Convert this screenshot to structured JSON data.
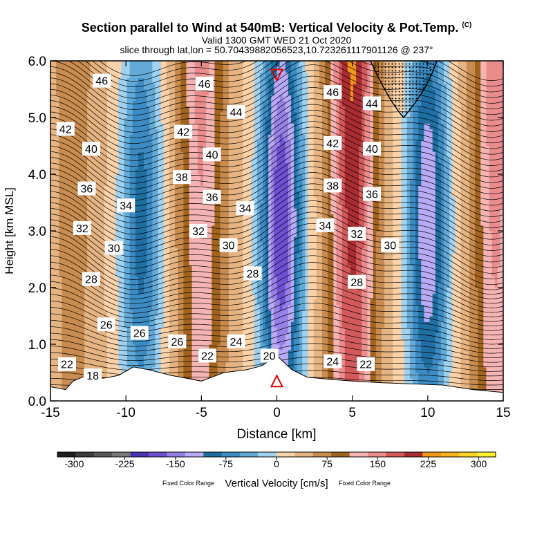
{
  "title": {
    "main": "Section parallel to Wind at 540mB: Vertical Velocity & Pot.Temp.",
    "copyright": "(C)",
    "valid": "Valid 1300 GMT WED 21 Oct 2020",
    "slice": "slice through lat,lon = 50.70439882056523,10.723261117901126 @ 237°"
  },
  "colorbar": {
    "title": "Vertical Velocity [cm/s]",
    "note_left": "Fixed Color Range",
    "note_right": "Fixed Color Range",
    "ticks": [
      "-300",
      "-225",
      "-150",
      "-75",
      "0",
      "75",
      "150",
      "225",
      "300"
    ],
    "tick_values": [
      -300,
      -225,
      -150,
      -75,
      0,
      75,
      150,
      225,
      300
    ],
    "range": [
      -325,
      325
    ],
    "step": 25,
    "colors": [
      "#1e1e1e",
      "#3c3c3c",
      "#5a5a5a",
      "#7a7a7a",
      "#4b32b4",
      "#6e50d2",
      "#9682e6",
      "#b9aaf5",
      "#1e6ea0",
      "#3c8cc3",
      "#64aad7",
      "#a0d2f0",
      "#fad2aa",
      "#e6b482",
      "#c88c50",
      "#a0641e",
      "#f5b4b4",
      "#eb8c8c",
      "#d25a5a",
      "#aa2d32",
      "#f09614",
      "#f5b41e",
      "#fad228",
      "#fff032"
    ]
  },
  "chart_data": {
    "type": "contour",
    "xlabel": "Distance [km]",
    "ylabel": "Height [km MSL]",
    "xlim": [
      -15,
      15
    ],
    "ylim": [
      0,
      6
    ],
    "xticks": [
      -15,
      -10,
      -5,
      0,
      5,
      10,
      15
    ],
    "xtick_labels": [
      "-15",
      "-10",
      "-5",
      "0",
      "5",
      "10",
      "15"
    ],
    "yticks": [
      0,
      1,
      2,
      3,
      4,
      5,
      6
    ],
    "ytick_labels": [
      "0.0",
      "1.0",
      "2.0",
      "3.0",
      "4.0",
      "5.0",
      "6.0"
    ],
    "shaded_field": "Vertical Velocity [cm/s]",
    "contour_field": "Pot.Temp.",
    "velocity_columns": [
      {
        "x_center": -13.5,
        "sign": "up",
        "peak": 40
      },
      {
        "x_center": -9.0,
        "sign": "down",
        "peak": -110
      },
      {
        "x_center": -5.0,
        "sign": "up",
        "peak": 110
      },
      {
        "x_center": 0.3,
        "sign": "down",
        "peak": -200
      },
      {
        "x_center": 5.0,
        "sign": "up",
        "peak": 180
      },
      {
        "x_center": 10.0,
        "sign": "down",
        "peak": -150
      },
      {
        "x_center": 14.5,
        "sign": "up",
        "peak": 120
      }
    ],
    "theta_labels": [
      {
        "text": "46",
        "x": -11.6,
        "y": 5.65
      },
      {
        "text": "46",
        "x": -4.8,
        "y": 5.6
      },
      {
        "text": "46",
        "x": 3.7,
        "y": 5.45
      },
      {
        "text": "44",
        "x": -2.7,
        "y": 5.1
      },
      {
        "text": "44",
        "x": 6.3,
        "y": 5.25
      },
      {
        "text": "42",
        "x": -14.0,
        "y": 4.8
      },
      {
        "text": "42",
        "x": -6.2,
        "y": 4.75
      },
      {
        "text": "42",
        "x": 3.7,
        "y": 4.55
      },
      {
        "text": "40",
        "x": -12.3,
        "y": 4.45
      },
      {
        "text": "40",
        "x": -4.3,
        "y": 4.35
      },
      {
        "text": "40",
        "x": 6.3,
        "y": 4.45
      },
      {
        "text": "38",
        "x": -6.3,
        "y": 3.95
      },
      {
        "text": "38",
        "x": 3.7,
        "y": 3.8
      },
      {
        "text": "36",
        "x": -12.6,
        "y": 3.75
      },
      {
        "text": "36",
        "x": -4.3,
        "y": 3.6
      },
      {
        "text": "36",
        "x": 6.3,
        "y": 3.65
      },
      {
        "text": "34",
        "x": -10.0,
        "y": 3.45
      },
      {
        "text": "34",
        "x": -2.1,
        "y": 3.4
      },
      {
        "text": "34",
        "x": 3.2,
        "y": 3.1
      },
      {
        "text": "32",
        "x": -12.9,
        "y": 3.05
      },
      {
        "text": "32",
        "x": -5.2,
        "y": 3.0
      },
      {
        "text": "32",
        "x": 5.3,
        "y": 2.95
      },
      {
        "text": "30",
        "x": -10.8,
        "y": 2.7
      },
      {
        "text": "30",
        "x": -3.2,
        "y": 2.75
      },
      {
        "text": "30",
        "x": 7.5,
        "y": 2.75
      },
      {
        "text": "28",
        "x": -12.3,
        "y": 2.15
      },
      {
        "text": "28",
        "x": -1.6,
        "y": 2.25
      },
      {
        "text": "28",
        "x": 5.3,
        "y": 2.1
      },
      {
        "text": "26",
        "x": -11.3,
        "y": 1.35
      },
      {
        "text": "26",
        "x": -9.1,
        "y": 1.2
      },
      {
        "text": "26",
        "x": -6.6,
        "y": 1.05
      },
      {
        "text": "24",
        "x": -2.7,
        "y": 1.05
      },
      {
        "text": "24",
        "x": 3.7,
        "y": 0.7
      },
      {
        "text": "22",
        "x": -13.9,
        "y": 0.65
      },
      {
        "text": "22",
        "x": -4.6,
        "y": 0.8
      },
      {
        "text": "22",
        "x": 5.9,
        "y": 0.65
      },
      {
        "text": "20",
        "x": -0.5,
        "y": 0.8
      },
      {
        "text": "18",
        "x": -12.2,
        "y": 0.45
      }
    ],
    "markers": [
      {
        "type": "triangle-down",
        "x": 0,
        "y": 5.75,
        "color": "#e00000"
      },
      {
        "type": "triangle-up",
        "x": 0,
        "y": 0.35,
        "color": "#e00000"
      }
    ],
    "stippled_region": {
      "x": [
        6.2,
        10.6
      ],
      "y": [
        5.0,
        6.0
      ]
    }
  }
}
